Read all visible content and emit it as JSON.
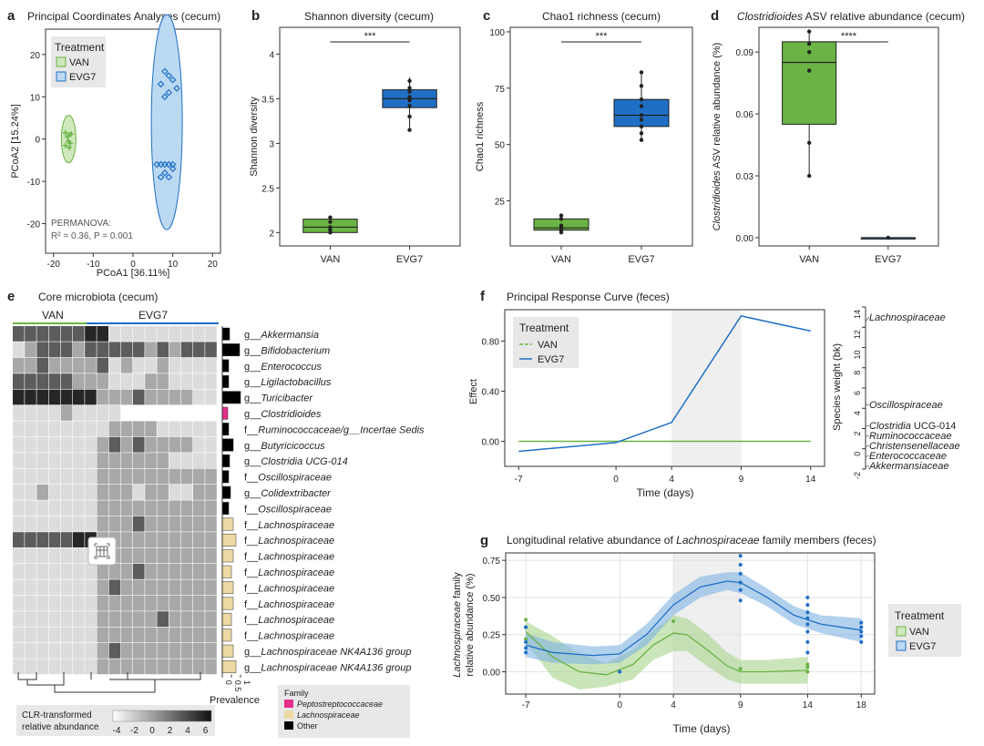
{
  "figure": "multi-panel",
  "panel_letters": [
    "a",
    "b",
    "c",
    "d",
    "e",
    "f",
    "g"
  ],
  "colors": {
    "van": "#6ab344",
    "evg7": "#1f6fc5",
    "van_fill": "#cfe8bd",
    "evg7_fill": "#bcd9f2",
    "pepto": "#e32e8c",
    "lachno": "#ecd9a3",
    "other": "#000000"
  },
  "chart_data": [
    {
      "id": "a",
      "type": "scatter",
      "title": "Principal Coordinates Analyses (cecum)",
      "xlabel": "PCoA1 [36.11%]",
      "ylabel": "PCoA2 [15.24%]",
      "xlim": [
        -22,
        22
      ],
      "ylim": [
        -27,
        26
      ],
      "xticks": [
        -20,
        -10,
        0,
        10,
        20
      ],
      "yticks": [
        20,
        10,
        0,
        -10,
        -20
      ],
      "legend_title": "Treatment",
      "series": [
        {
          "name": "VAN",
          "points": [
            [
              -17,
              1.5
            ],
            [
              -16,
              1
            ],
            [
              -16.5,
              0.5
            ],
            [
              -15.5,
              1.2
            ],
            [
              -16.2,
              -0.5
            ],
            [
              -15.8,
              -1
            ],
            [
              -17,
              -1.5
            ],
            [
              -16,
              -2
            ]
          ]
        },
        {
          "name": "EVG7",
          "points": [
            [
              8,
              16
            ],
            [
              9,
              15
            ],
            [
              7,
              13
            ],
            [
              10,
              14
            ],
            [
              11,
              12
            ],
            [
              9,
              11
            ],
            [
              8,
              10
            ],
            [
              6,
              -6
            ],
            [
              7,
              -6
            ],
            [
              8,
              -6
            ],
            [
              9,
              -6
            ],
            [
              10,
              -6
            ],
            [
              8,
              -8
            ],
            [
              7,
              -9
            ],
            [
              9,
              -9
            ],
            [
              10,
              -7
            ]
          ]
        }
      ],
      "annotation": "PERMANOVA:",
      "annotation_stat": "R² = 0.36, P = 0.001"
    },
    {
      "id": "b",
      "type": "box",
      "title": "Shannon diversity (cecum)",
      "ylabel": "Shannon diversity",
      "ylim": [
        1.85,
        4.3
      ],
      "yticks": [
        2.0,
        2.5,
        3.0,
        3.5,
        4.0
      ],
      "significance": "***",
      "groups": [
        {
          "name": "VAN",
          "min": 2.0,
          "q1": 2.0,
          "median": 2.06,
          "q3": 2.15,
          "max": 2.18,
          "points": [
            2.0,
            2.03,
            2.06,
            2.12,
            2.17
          ]
        },
        {
          "name": "EVG7",
          "min": 3.15,
          "q1": 3.4,
          "median": 3.5,
          "q3": 3.6,
          "max": 3.74,
          "points": [
            3.15,
            3.3,
            3.42,
            3.48,
            3.52,
            3.58,
            3.62,
            3.7
          ]
        }
      ]
    },
    {
      "id": "c",
      "type": "box",
      "title": "Chao1 richness (cecum)",
      "ylabel": "Chao1 richness",
      "ylim": [
        5,
        102
      ],
      "yticks": [
        25,
        50,
        75,
        100
      ],
      "significance": "***",
      "groups": [
        {
          "name": "VAN",
          "min": 11,
          "q1": 12,
          "median": 13,
          "q3": 17,
          "max": 18.5,
          "points": [
            11,
            12,
            13,
            14,
            17,
            18.5
          ]
        },
        {
          "name": "EVG7",
          "min": 52,
          "q1": 58,
          "median": 63,
          "q3": 70,
          "max": 82,
          "points": [
            52,
            55,
            58,
            61,
            63,
            67,
            70,
            76,
            82
          ]
        }
      ]
    },
    {
      "id": "d",
      "type": "box",
      "title_italic": "Clostridioides",
      "title_rest": " ASV relative abundance (cecum)",
      "ylabel_italic": "Clostridioides",
      "ylabel_rest": " ASV relative abundance (%)",
      "ylim": [
        -0.004,
        0.102
      ],
      "yticks": [
        0.0,
        0.03,
        0.06,
        0.09
      ],
      "ytick_labels": [
        "0.00",
        "0.03",
        "0.06",
        "0.09"
      ],
      "significance": "****",
      "groups": [
        {
          "name": "VAN",
          "min": 0.03,
          "q1": 0.055,
          "median": 0.085,
          "q3": 0.095,
          "max": 0.1,
          "points": [
            0.03,
            0.046,
            0.081,
            0.09,
            0.094,
            0.1
          ]
        },
        {
          "name": "EVG7",
          "min": 0,
          "q1": 0,
          "median": 0,
          "q3": 0,
          "max": 0,
          "points": [
            0
          ]
        }
      ]
    },
    {
      "id": "e",
      "type": "heatmap",
      "title": "Core microbiota (cecum)",
      "group_labels": [
        "VAN",
        "EVG7"
      ],
      "rows": [
        {
          "label": "g__Akkermansia",
          "family": "other",
          "prev": 0.4
        },
        {
          "label": "g__Bifidobacterium",
          "family": "other",
          "prev": 0.95
        },
        {
          "label": "g__Enterococcus",
          "family": "other",
          "prev": 0.35
        },
        {
          "label": "g__Ligilactobacillus",
          "family": "other",
          "prev": 0.35
        },
        {
          "label": "g__Turicibacter",
          "family": "other",
          "prev": 1.0
        },
        {
          "label": "g__Clostridioides",
          "family": "pepto",
          "prev": 0.3
        },
        {
          "label": "f__Ruminococcaceae/g__Incertae Sedis",
          "family": "other",
          "prev": 0.35
        },
        {
          "label": "g__Butyricicoccus",
          "family": "other",
          "prev": 0.6
        },
        {
          "label": "g__Clostridia UCG-014",
          "family": "other",
          "prev": 0.4
        },
        {
          "label": "f__Oscillospiraceae",
          "family": "other",
          "prev": 0.35
        },
        {
          "label": "g__Colidextribacter",
          "family": "other",
          "prev": 0.45
        },
        {
          "label": "f__Oscillospiraceae",
          "family": "other",
          "prev": 0.35
        },
        {
          "label": "f__Lachnospiraceae",
          "family": "lachno",
          "prev": 0.6
        },
        {
          "label": "f__Lachnospiraceae",
          "family": "lachno",
          "prev": 0.75
        },
        {
          "label": "f__Lachnospiraceae",
          "family": "lachno",
          "prev": 0.6
        },
        {
          "label": "f__Lachnospiraceae",
          "family": "lachno",
          "prev": 0.5
        },
        {
          "label": "f__Lachnospiraceae",
          "family": "lachno",
          "prev": 0.6
        },
        {
          "label": "f__Lachnospiraceae",
          "family": "lachno",
          "prev": 0.6
        },
        {
          "label": "f__Lachnospiraceae",
          "family": "lachno",
          "prev": 0.5
        },
        {
          "label": "f__Lachnospiraceae",
          "family": "lachno",
          "prev": 0.5
        },
        {
          "label": "g__Lachnospiraceae NK4A136 group",
          "family": "lachno",
          "prev": 0.6
        },
        {
          "label": "g__Lachnospiraceae NK4A136 group",
          "family": "lachno",
          "prev": 0.75
        }
      ],
      "prevalence_label": "Prevalence",
      "prevalence_ticks": [
        "0",
        "0.5",
        "1"
      ],
      "scale_title": "CLR-transformed",
      "scale_title2": "relative abundance",
      "scale_ticks": [
        "-4",
        "-2",
        "0",
        "2",
        "4",
        "6"
      ],
      "family_legend_title": "Family",
      "family_legend": [
        {
          "key": "pepto",
          "label": "Peptostreptococcaceae"
        },
        {
          "key": "lachno",
          "label": "Lachnospiraceae"
        },
        {
          "key": "other",
          "label": "Other"
        }
      ]
    },
    {
      "id": "f",
      "type": "line",
      "title": "Principal Response Curve (feces)",
      "xlabel": "Time (days)",
      "ylabel": "Effect",
      "x": [
        -7,
        0,
        4,
        9,
        14
      ],
      "xtick_labels": [
        "-7",
        "0",
        "4",
        "9",
        "14"
      ],
      "ylim": [
        -0.2,
        1.05
      ],
      "yticks": [
        0.0,
        0.4,
        0.8
      ],
      "ytick_labels": [
        "0.00",
        "0.40",
        "0.80"
      ],
      "shade": [
        4,
        9
      ],
      "series": [
        {
          "name": "VAN",
          "values": [
            0,
            0,
            0,
            0,
            0
          ]
        },
        {
          "name": "EVG7",
          "values": [
            -0.08,
            -0.01,
            0.15,
            1.0,
            0.88
          ]
        }
      ],
      "legend_title": "Treatment",
      "species_axis_label": "Species weight (bk)",
      "species_yticks": [
        14,
        12,
        10,
        8,
        6,
        4,
        2,
        0,
        -2
      ],
      "species": [
        {
          "name": "Lachnospiraceae",
          "weight": 12.6
        },
        {
          "name": "Oscillospiraceae",
          "weight": 4.3
        },
        {
          "name": "Clostridia UCG-014",
          "weight": 2.2
        },
        {
          "name": "Ruminococcaceae",
          "weight": 1.2
        },
        {
          "name": "Christensenellaceae",
          "weight": 0.2
        },
        {
          "name": "Enterococcaceae",
          "weight": -0.8
        },
        {
          "name": "Akkermansiaceae",
          "weight": -1.8
        }
      ]
    },
    {
      "id": "g",
      "type": "line",
      "title_prefix": "Longitudinal relative abundance of ",
      "title_italic": "Lachnospiraceae",
      "title_suffix": " family members (feces)",
      "xlabel": "Time (days)",
      "ylabel_italic": "Lachnospiraceae",
      "ylabel_rest": " family",
      "ylabel_line2": "relative abundance (%)",
      "xlim": [
        -8.5,
        19
      ],
      "xticks": [
        -7,
        0,
        4,
        9,
        14,
        18
      ],
      "xtick_labels": [
        "-7",
        "0",
        "4",
        "9",
        "14",
        "18"
      ],
      "ylim": [
        -0.15,
        0.8
      ],
      "yticks": [
        0.0,
        0.25,
        0.5,
        0.75
      ],
      "ytick_labels": [
        "0.00",
        "0.25",
        "0.50",
        "0.75"
      ],
      "shade": [
        4,
        9
      ],
      "series": [
        {
          "name": "VAN",
          "curve": [
            [
              -7,
              0.27
            ],
            [
              -5,
              0.1
            ],
            [
              -3,
              0.0
            ],
            [
              -1,
              -0.02
            ],
            [
              1,
              0.05
            ],
            [
              2.5,
              0.18
            ],
            [
              4,
              0.26
            ],
            [
              5,
              0.25
            ],
            [
              6.5,
              0.15
            ],
            [
              8,
              0.04
            ],
            [
              9,
              0.0
            ],
            [
              11,
              0.0
            ],
            [
              14,
              0.01
            ]
          ],
          "lower": [
            [
              -7,
              0.2
            ],
            [
              -5,
              -0.04
            ],
            [
              -3,
              -0.12
            ],
            [
              -1,
              -0.1
            ],
            [
              1,
              -0.05
            ],
            [
              2.5,
              0.08
            ],
            [
              4,
              0.14
            ],
            [
              5,
              0.14
            ],
            [
              6.5,
              0.04
            ],
            [
              8,
              -0.05
            ],
            [
              9,
              -0.08
            ],
            [
              11,
              -0.08
            ],
            [
              14,
              -0.08
            ]
          ],
          "upper": [
            [
              -7,
              0.34
            ],
            [
              -5,
              0.24
            ],
            [
              -3,
              0.12
            ],
            [
              -1,
              0.06
            ],
            [
              1,
              0.15
            ],
            [
              2.5,
              0.28
            ],
            [
              4,
              0.38
            ],
            [
              5,
              0.36
            ],
            [
              6.5,
              0.26
            ],
            [
              8,
              0.13
            ],
            [
              9,
              0.08
            ],
            [
              11,
              0.08
            ],
            [
              14,
              0.1
            ]
          ],
          "points": [
            [
              -7,
              0.35
            ],
            [
              -7,
              0.3
            ],
            [
              -7,
              0.22
            ],
            [
              4,
              0.34
            ],
            [
              9,
              0.02
            ],
            [
              14,
              0.0
            ],
            [
              14,
              0.05
            ],
            [
              14,
              0.03
            ]
          ]
        },
        {
          "name": "EVG7",
          "curve": [
            [
              -7,
              0.18
            ],
            [
              -5,
              0.13
            ],
            [
              -2,
              0.11
            ],
            [
              0,
              0.12
            ],
            [
              2,
              0.25
            ],
            [
              4,
              0.45
            ],
            [
              6,
              0.57
            ],
            [
              8,
              0.61
            ],
            [
              9,
              0.6
            ],
            [
              11,
              0.5
            ],
            [
              13,
              0.38
            ],
            [
              15,
              0.32
            ],
            [
              18,
              0.28
            ]
          ],
          "lower": [
            [
              -7,
              0.1
            ],
            [
              -5,
              0.06
            ],
            [
              -2,
              0.05
            ],
            [
              0,
              0.06
            ],
            [
              2,
              0.18
            ],
            [
              4,
              0.38
            ],
            [
              6,
              0.5
            ],
            [
              8,
              0.55
            ],
            [
              9,
              0.53
            ],
            [
              11,
              0.44
            ],
            [
              13,
              0.32
            ],
            [
              15,
              0.26
            ],
            [
              18,
              0.2
            ]
          ],
          "upper": [
            [
              -7,
              0.26
            ],
            [
              -5,
              0.2
            ],
            [
              -2,
              0.17
            ],
            [
              0,
              0.18
            ],
            [
              2,
              0.32
            ],
            [
              4,
              0.52
            ],
            [
              6,
              0.64
            ],
            [
              8,
              0.67
            ],
            [
              9,
              0.67
            ],
            [
              11,
              0.56
            ],
            [
              13,
              0.44
            ],
            [
              15,
              0.38
            ],
            [
              18,
              0.36
            ]
          ],
          "points": [
            [
              -7,
              0.3
            ],
            [
              -7,
              0.2
            ],
            [
              -7,
              0.16
            ],
            [
              -7,
              0.13
            ],
            [
              0,
              0.0
            ],
            [
              9,
              0.78
            ],
            [
              9,
              0.72
            ],
            [
              9,
              0.66
            ],
            [
              9,
              0.6
            ],
            [
              9,
              0.55
            ],
            [
              9,
              0.48
            ],
            [
              14,
              0.5
            ],
            [
              14,
              0.45
            ],
            [
              14,
              0.4
            ],
            [
              14,
              0.36
            ],
            [
              14,
              0.32
            ],
            [
              14,
              0.27
            ],
            [
              14,
              0.2
            ],
            [
              14,
              0.13
            ],
            [
              18,
              0.33
            ],
            [
              18,
              0.3
            ],
            [
              18,
              0.27
            ],
            [
              18,
              0.24
            ],
            [
              18,
              0.2
            ]
          ]
        }
      ],
      "legend_title": "Treatment"
    }
  ]
}
